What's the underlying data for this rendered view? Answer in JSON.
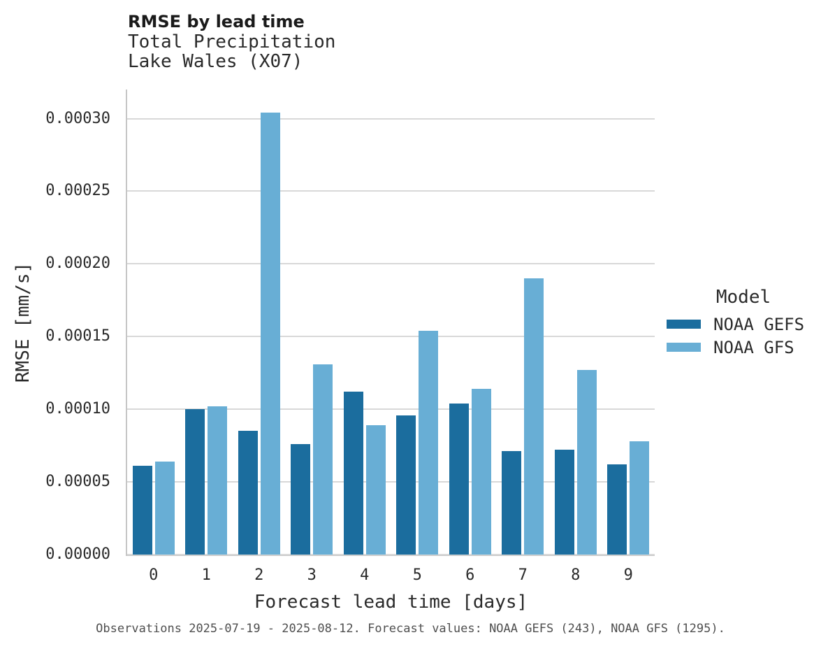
{
  "header": {
    "title": "RMSE by lead time",
    "subtitle_line1": "Total Precipitation",
    "subtitle_line2": "Lake Wales (X07)"
  },
  "chart_data": {
    "type": "bar",
    "title": "RMSE by lead time",
    "subtitle": [
      "Total Precipitation",
      "Lake Wales (X07)"
    ],
    "xlabel": "Forecast lead time [days]",
    "ylabel": "RMSE [mm/s]",
    "categories": [
      "0",
      "1",
      "2",
      "3",
      "4",
      "5",
      "6",
      "7",
      "8",
      "9"
    ],
    "series": [
      {
        "name": "NOAA GEFS",
        "color": "#1b6d9e",
        "values": [
          6.1e-05,
          0.0001,
          8.5e-05,
          7.6e-05,
          0.000112,
          9.6e-05,
          0.000104,
          7.1e-05,
          7.2e-05,
          6.2e-05
        ]
      },
      {
        "name": "NOAA GFS",
        "color": "#68aed5",
        "values": [
          6.4e-05,
          0.000102,
          0.000304,
          0.000131,
          8.9e-05,
          0.000154,
          0.000114,
          0.00019,
          0.000127,
          7.8e-05
        ]
      }
    ],
    "ylim": [
      0,
      0.00032
    ],
    "yticks": [
      0,
      5e-05,
      0.0001,
      0.00015,
      0.0002,
      0.00025,
      0.0003
    ],
    "ytick_labels": [
      "0.00000",
      "0.00005",
      "0.00010",
      "0.00015",
      "0.00020",
      "0.00025",
      "0.00030"
    ],
    "grid": "horizontal",
    "legend_position": "right"
  },
  "legend": {
    "title": "Model",
    "items": [
      {
        "label": "NOAA GEFS",
        "color": "#1b6d9e"
      },
      {
        "label": "NOAA GFS",
        "color": "#68aed5"
      }
    ]
  },
  "axes": {
    "x_title": "Forecast lead time [days]",
    "y_title": "RMSE [mm/s]"
  },
  "caption": "Observations 2025-07-19 - 2025-08-12. Forecast values: NOAA GEFS (243), NOAA GFS (1295).",
  "colors": {
    "gefs": "#1b6d9e",
    "gfs": "#68aed5",
    "gridline": "#d8d8d8",
    "spine": "#c6c6c6",
    "text": "#2a2a2a",
    "caption": "#4f4f4f"
  }
}
